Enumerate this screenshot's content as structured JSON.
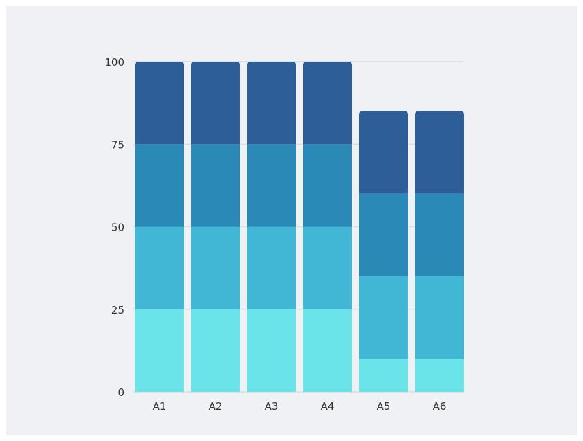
{
  "chart_data": {
    "type": "bar",
    "stacked": true,
    "categories": [
      "A1",
      "A2",
      "A3",
      "A4",
      "A5",
      "A6"
    ],
    "series": [
      {
        "values": [
          25,
          25,
          25,
          25,
          10,
          10
        ],
        "color": "#6ae4e8"
      },
      {
        "values": [
          25,
          25,
          25,
          25,
          25,
          25
        ],
        "color": "#42b6d5"
      },
      {
        "values": [
          25,
          25,
          25,
          25,
          25,
          25
        ],
        "color": "#2b89b7"
      },
      {
        "values": [
          25,
          25,
          25,
          25,
          25,
          25
        ],
        "color": "#2d5e98"
      }
    ],
    "yticks": [
      0,
      25,
      50,
      75,
      100
    ],
    "ylim": [
      0,
      100
    ],
    "grid": true,
    "gridColor": "#dcdde2",
    "title": "",
    "xlabel": "",
    "ylabel": ""
  }
}
